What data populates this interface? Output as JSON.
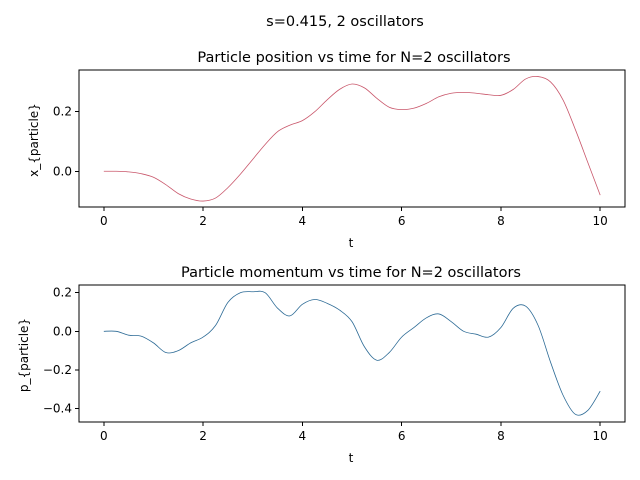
{
  "figure": {
    "suptitle": "s=0.415, 2 oscillators"
  },
  "chart_data": [
    {
      "type": "line",
      "title": "Particle position vs time for N=2 oscillators",
      "xlabel": "t",
      "ylabel": "x_{particle}",
      "xlim": [
        -0.5,
        10.5
      ],
      "ylim": [
        -0.12,
        0.34
      ],
      "xticks": [
        0,
        2,
        4,
        6,
        8,
        10
      ],
      "xtick_labels": [
        "0",
        "2",
        "4",
        "6",
        "8",
        "10"
      ],
      "yticks": [
        0.0,
        0.2
      ],
      "ytick_labels": [
        "0.0",
        "0.2"
      ],
      "grid": false,
      "series": [
        {
          "color": "#c9576b",
          "x": [
            0,
            0.25,
            0.5,
            0.75,
            1.0,
            1.25,
            1.5,
            1.75,
            2.0,
            2.25,
            2.5,
            2.75,
            3.0,
            3.25,
            3.5,
            3.75,
            4.0,
            4.25,
            4.5,
            4.75,
            5.0,
            5.25,
            5.5,
            5.75,
            6.0,
            6.25,
            6.5,
            6.75,
            7.0,
            7.25,
            7.5,
            7.75,
            8.0,
            8.25,
            8.5,
            8.75,
            9.0,
            9.25,
            9.5,
            9.75,
            10.0
          ],
          "values": [
            0.0,
            0.0,
            -0.002,
            -0.008,
            -0.02,
            -0.045,
            -0.075,
            -0.093,
            -0.1,
            -0.09,
            -0.055,
            -0.01,
            0.04,
            0.09,
            0.133,
            0.155,
            0.17,
            0.2,
            0.24,
            0.275,
            0.293,
            0.28,
            0.245,
            0.215,
            0.207,
            0.212,
            0.228,
            0.25,
            0.262,
            0.265,
            0.262,
            0.257,
            0.255,
            0.275,
            0.31,
            0.318,
            0.3,
            0.24,
            0.14,
            0.03,
            -0.08
          ]
        }
      ]
    },
    {
      "type": "line",
      "title": "Particle momentum vs time for N=2 oscillators",
      "xlabel": "t",
      "ylabel": "p_{particle}",
      "xlim": [
        -0.5,
        10.5
      ],
      "ylim": [
        -0.47,
        0.24
      ],
      "xticks": [
        0,
        2,
        4,
        6,
        8,
        10
      ],
      "xtick_labels": [
        "0",
        "2",
        "4",
        "6",
        "8",
        "10"
      ],
      "yticks": [
        0.2,
        0.0,
        -0.2,
        -0.4
      ],
      "ytick_labels": [
        "0.2",
        "0.0",
        "−0.2",
        "−0.4"
      ],
      "grid": false,
      "series": [
        {
          "color": "#2d6b96",
          "x": [
            0,
            0.25,
            0.5,
            0.75,
            1.0,
            1.25,
            1.5,
            1.75,
            2.0,
            2.25,
            2.5,
            2.75,
            3.0,
            3.25,
            3.5,
            3.75,
            4.0,
            4.25,
            4.5,
            4.75,
            5.0,
            5.25,
            5.5,
            5.75,
            6.0,
            6.25,
            6.5,
            6.75,
            7.0,
            7.25,
            7.5,
            7.75,
            8.0,
            8.25,
            8.5,
            8.75,
            9.0,
            9.25,
            9.5,
            9.75,
            10.0
          ],
          "values": [
            0.0,
            0.0,
            -0.02,
            -0.025,
            -0.06,
            -0.11,
            -0.1,
            -0.06,
            -0.03,
            0.03,
            0.15,
            0.2,
            0.205,
            0.2,
            0.12,
            0.08,
            0.14,
            0.165,
            0.145,
            0.11,
            0.05,
            -0.08,
            -0.15,
            -0.11,
            -0.03,
            0.02,
            0.07,
            0.09,
            0.05,
            0.0,
            -0.015,
            -0.03,
            0.02,
            0.12,
            0.13,
            0.03,
            -0.16,
            -0.33,
            -0.43,
            -0.41,
            -0.31
          ]
        }
      ]
    }
  ]
}
